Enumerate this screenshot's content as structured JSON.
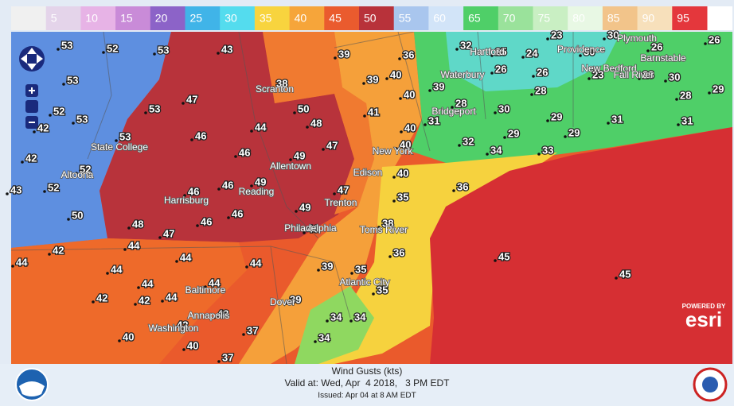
{
  "legend": {
    "labels": [
      5,
      10,
      15,
      20,
      25,
      30,
      35,
      40,
      45,
      50,
      55,
      60,
      65,
      70,
      75,
      80,
      85,
      90,
      95
    ],
    "colors": [
      "#e4d4ea",
      "#e7b3e6",
      "#c98bd8",
      "#8c63c8",
      "#40b4e8",
      "#54dcee",
      "#f8d43e",
      "#f6a53a",
      "#ea5b2e",
      "#b8323a",
      "#a9c6ee",
      "#d2e4f8",
      "#4fcf68",
      "#9ae29b",
      "#c9efc3",
      "#e8f8e4",
      "#f2c48a",
      "#f7e0bb",
      "#e4373c"
    ]
  },
  "map": {
    "gusts": [
      53,
      52,
      53,
      43,
      39,
      36,
      32,
      25,
      24,
      23,
      30,
      30,
      26,
      26,
      53,
      47,
      38,
      39,
      40,
      39,
      26,
      26,
      23,
      28,
      30,
      40,
      28,
      28,
      29,
      50,
      52,
      53,
      41,
      28,
      30,
      29,
      31,
      31,
      53,
      42,
      48,
      44,
      31,
      40,
      53,
      46,
      47,
      40,
      32,
      29,
      29,
      34,
      33,
      42,
      46,
      49,
      52,
      40,
      36,
      43,
      52,
      46,
      46,
      49,
      47,
      35,
      50,
      48,
      49,
      46,
      46,
      47,
      46,
      38,
      42,
      44,
      44,
      44,
      36,
      45,
      44,
      44,
      39,
      35,
      45,
      44,
      44,
      42,
      42,
      44,
      35,
      43,
      39,
      34,
      34,
      42,
      37,
      40,
      34,
      40,
      37
    ],
    "places": [
      "Scranton",
      "State College",
      "Altoona",
      "Harrisburg",
      "Reading",
      "Allentown",
      "Philadelphia",
      "Trenton",
      "Edison",
      "New York",
      "Toms River",
      "Bridgeport",
      "Waterbury",
      "Hartford",
      "Providence",
      "Plymouth",
      "New Bedford",
      "Fall River",
      "Barnstable",
      "Atlantic City",
      "Dover",
      "Baltimore",
      "Annapolis",
      "Washington"
    ]
  },
  "attribution": {
    "powered_by": "POWERED BY",
    "brand": "esri"
  },
  "footer": {
    "title": "Wind Gusts (kts)",
    "valid": "Valid at: Wed, Apr  4 2018,   3 PM EDT",
    "issued": "Issued: Apr 04 at 8 AM EDT"
  }
}
